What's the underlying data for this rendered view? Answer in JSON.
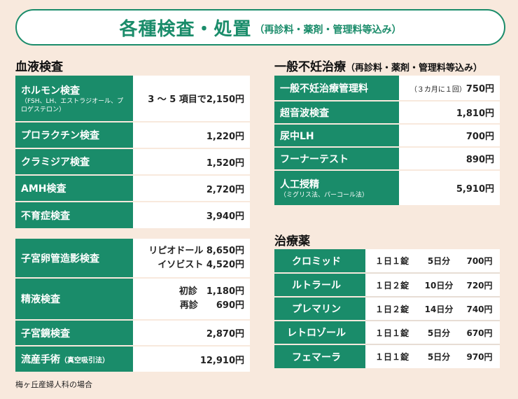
{
  "header": {
    "title": "各種検査・処置",
    "subtitle": "（再診料・薬剤・管理料等込み）"
  },
  "blood": {
    "heading": "血液検査",
    "rows": [
      {
        "label": "ホルモン検査",
        "note": "（FSH、LH、エストラジオール、プロゲステロン）",
        "value": "3 ～ 5 項目で2,150円"
      },
      {
        "label": "プロラクチン検査",
        "value": "1,220円"
      },
      {
        "label": "クラミジア検査",
        "value": "1,520円"
      },
      {
        "label": "AMH検査",
        "value": "2,720円"
      },
      {
        "label": "不育症検査",
        "value": "3,940円"
      }
    ]
  },
  "procedures": {
    "rows": [
      {
        "label": "子宮卵管造影検査",
        "lines": [
          "リピオドール 8,650円",
          "イソビスト 4,520円"
        ]
      },
      {
        "label": "精液検査",
        "lines": [
          "初診　1,180円",
          "再診　　690円"
        ]
      },
      {
        "label": "子宮鏡検査",
        "lines": [
          "2,870円"
        ]
      },
      {
        "label": "流産手術",
        "note": "（真空吸引法）",
        "lines": [
          "12,910円"
        ]
      }
    ]
  },
  "fertility": {
    "heading": "一般不妊治療",
    "heading_sub": "（再診料・薬剤・管理料等込み）",
    "rows": [
      {
        "label": "一般不妊治療管理料",
        "prefix": "（３カ月に１回）",
        "value": "750円"
      },
      {
        "label": "超音波検査",
        "value": "1,810円"
      },
      {
        "label": "尿中LH",
        "value": "700円"
      },
      {
        "label": "フーナーテスト",
        "value": "890円"
      },
      {
        "label": "人工授精",
        "note": "（ミグリス法、パーコール法）",
        "value": "5,910円"
      }
    ]
  },
  "medicine": {
    "heading": "治療薬",
    "rows": [
      {
        "name": "クロミッド",
        "dose": "１日１錠",
        "days": "5日分",
        "price": "700円"
      },
      {
        "name": "ルトラール",
        "dose": "１日２錠",
        "days": "10日分",
        "price": "720円"
      },
      {
        "name": "プレマリン",
        "dose": "１日２錠",
        "days": "14日分",
        "price": "740円"
      },
      {
        "name": "レトロゾール",
        "dose": "１日１錠",
        "days": "5日分",
        "price": "670円"
      },
      {
        "name": "フェマーラ",
        "dose": "１日１錠",
        "days": "5日分",
        "price": "970円"
      }
    ]
  },
  "footnote": "梅ヶ丘産婦人科の場合",
  "colors": {
    "accent": "#1a8c6a",
    "background": "#f8e9dd"
  }
}
